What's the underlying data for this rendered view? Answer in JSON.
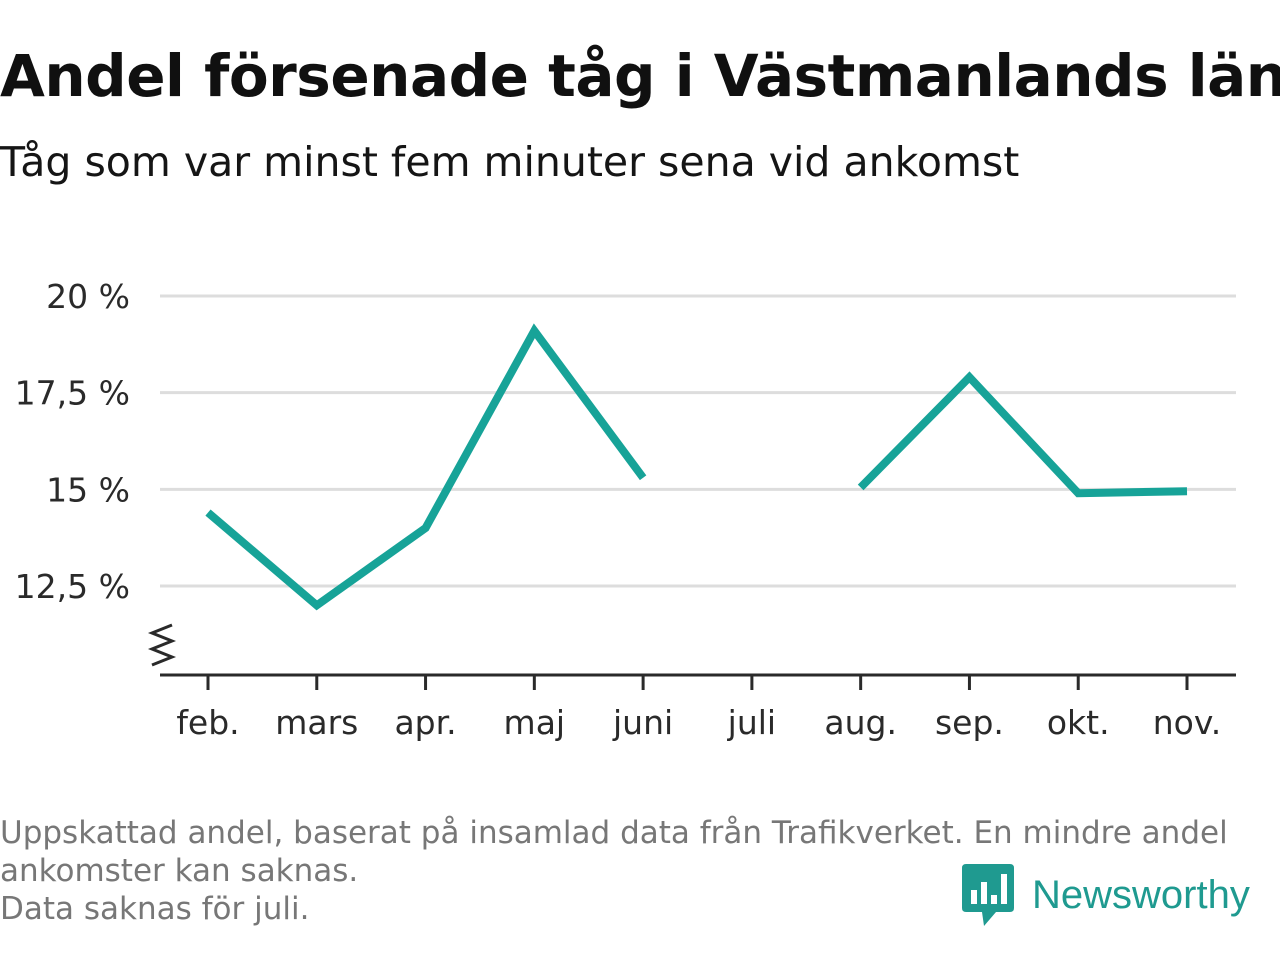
{
  "title": "Andel försenade tåg i Västmanlands län",
  "subtitle": "Tåg som var minst fem minuter sena vid ankomst",
  "footnote": {
    "line1": "Uppskattad andel, baserat på insamlad data från Trafikverket. En mindre andel",
    "line2": "ankomster kan saknas.",
    "line3": "Data saknas för juli."
  },
  "brand": {
    "name": "Newsworthy",
    "icon": "newsworthy-chart-bubble-icon"
  },
  "colors": {
    "line": "#17a398",
    "grid": "#dddddd",
    "axis": "#2a2a2a",
    "brand": "#1f9a90"
  },
  "chart_data": {
    "type": "line",
    "categories": [
      "feb.",
      "mars",
      "apr.",
      "maj",
      "juni",
      "juli",
      "aug.",
      "sep.",
      "okt.",
      "nov."
    ],
    "series": [
      {
        "values": [
          14.4,
          12.0,
          14.0,
          19.1,
          15.3,
          null,
          15.05,
          17.9,
          14.9,
          14.95
        ]
      }
    ],
    "yticks": [
      12.5,
      15,
      17.5,
      20
    ],
    "ytick_labels": [
      "12,5 %",
      "15 %",
      "17,5 %",
      "20 %"
    ],
    "ylim": [
      10.25,
      20.0
    ],
    "y_axis_break": true,
    "grid": true,
    "legend": "none"
  }
}
